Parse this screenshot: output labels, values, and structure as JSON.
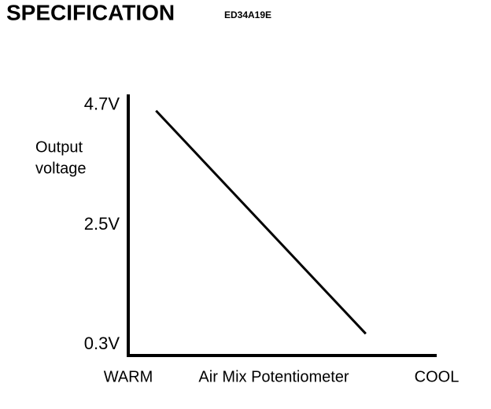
{
  "chart_data": {
    "type": "line",
    "title": "SPECIFICATION",
    "code": "ED34A19E",
    "ylabel": [
      "Output",
      "voltage"
    ],
    "xlabel": "Air Mix Potentiometer",
    "x": [
      0.09,
      0.77
    ],
    "series": [
      {
        "color": "#000000",
        "values": [
          4.6,
          0.5
        ]
      }
    ],
    "xlim": [
      0,
      1
    ],
    "xticks": [
      {
        "value": 0,
        "label": "WARM"
      },
      {
        "value": 1,
        "label": "COOL"
      }
    ],
    "ylim": [
      0.1,
      4.9
    ],
    "yticks": [
      {
        "value": 0.3,
        "label": "0.3V"
      },
      {
        "value": 2.5,
        "label": "2.5V"
      },
      {
        "value": 4.7,
        "label": "4.7V"
      }
    ],
    "grid": false
  }
}
